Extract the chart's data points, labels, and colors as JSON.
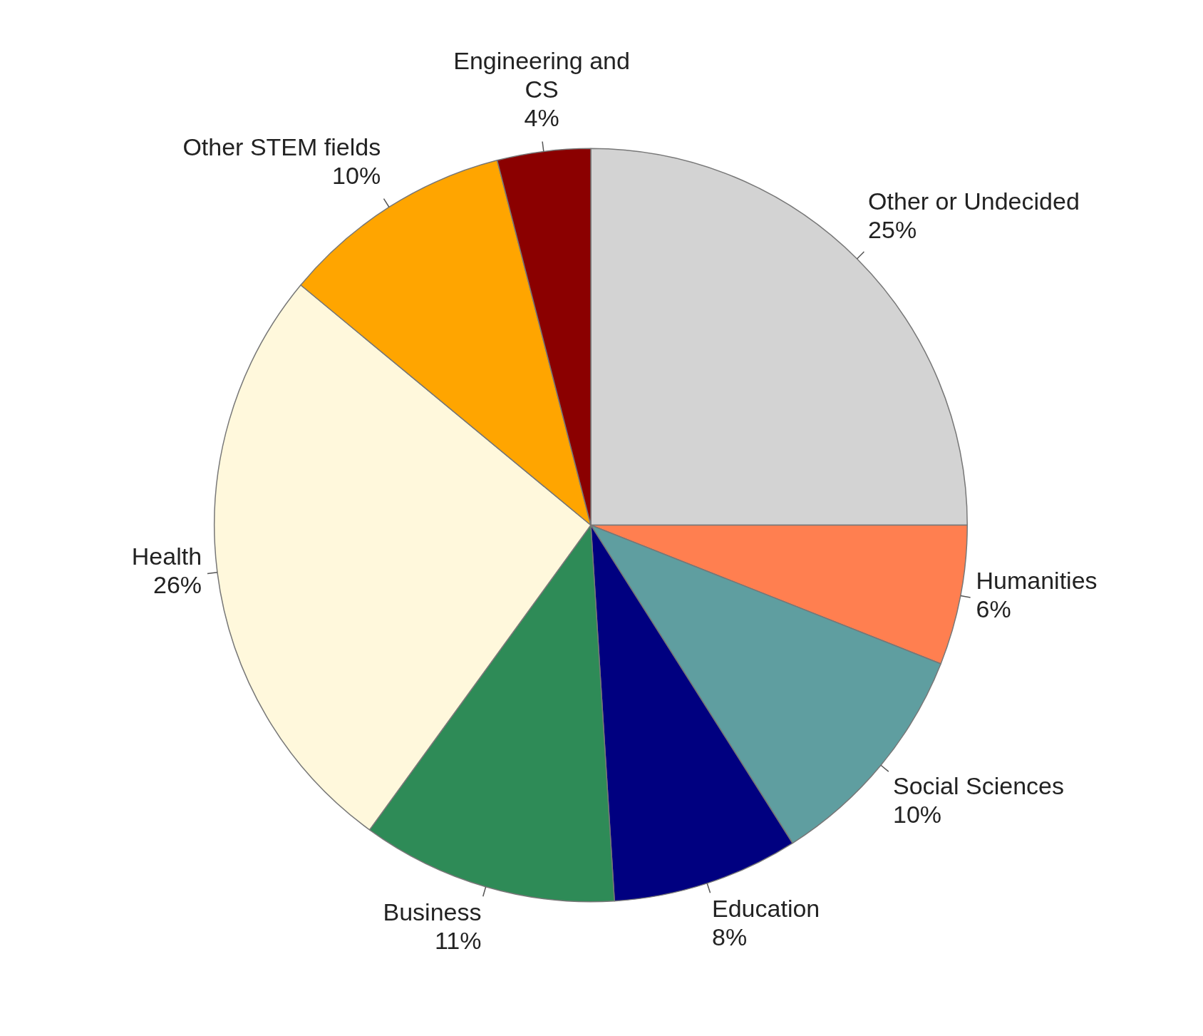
{
  "chart_data": {
    "type": "pie",
    "categories": [
      "Other or Undecided",
      "Humanities",
      "Social Sciences",
      "Education",
      "Business",
      "Health",
      "Other STEM fields",
      "Engineering and CS"
    ],
    "values": [
      25,
      6,
      10,
      8,
      11,
      26,
      10,
      4
    ],
    "colors": [
      "#d3d3d3",
      "#ff7f50",
      "#5f9ea0",
      "#000080",
      "#2e8b57",
      "#fff8dc",
      "#ffa500",
      "#8b0000"
    ],
    "value_labels": [
      "25%",
      "6%",
      "10%",
      "8%",
      "11%",
      "26%",
      "10%",
      "4%"
    ],
    "legend": false
  }
}
